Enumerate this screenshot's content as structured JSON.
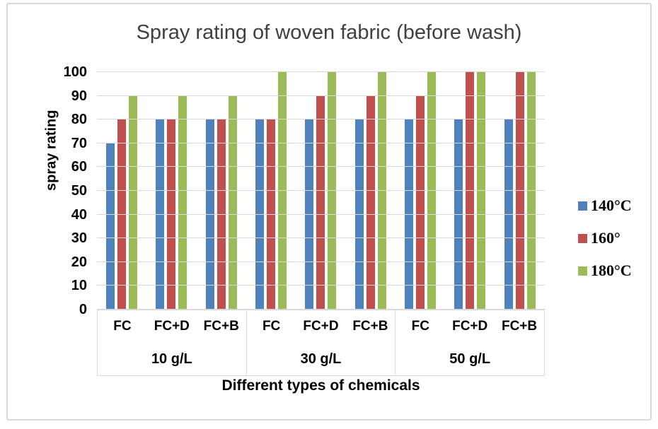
{
  "chart_data": {
    "type": "bar",
    "title": "Spray rating of woven fabric (before wash)",
    "xlabel": "Different types of chemicals",
    "ylabel": "spray rating",
    "ylim": [
      0,
      100
    ],
    "yticks": [
      0,
      10,
      20,
      30,
      40,
      50,
      60,
      70,
      80,
      90,
      100
    ],
    "grid": "horizontal",
    "legend_position": "right",
    "gridline_color": "#d9d9d9",
    "title_color": "#404040",
    "group_labels": [
      "10 g/L",
      "30 g/L",
      "50 g/L"
    ],
    "categories": [
      "FC",
      "FC+D",
      "FC+B",
      "FC",
      "FC+D",
      "FC+B",
      "FC",
      "FC+D",
      "FC+B"
    ],
    "series": [
      {
        "name": "140°C",
        "color": "#4F81BD",
        "values": [
          70,
          80,
          80,
          80,
          80,
          80,
          80,
          80,
          80
        ]
      },
      {
        "name": "160°",
        "color": "#C0504D",
        "values": [
          80,
          80,
          80,
          80,
          90,
          90,
          90,
          100,
          100
        ]
      },
      {
        "name": "180°C",
        "color": "#9BBB59",
        "values": [
          90,
          90,
          90,
          100,
          100,
          100,
          100,
          100,
          100
        ]
      }
    ]
  }
}
